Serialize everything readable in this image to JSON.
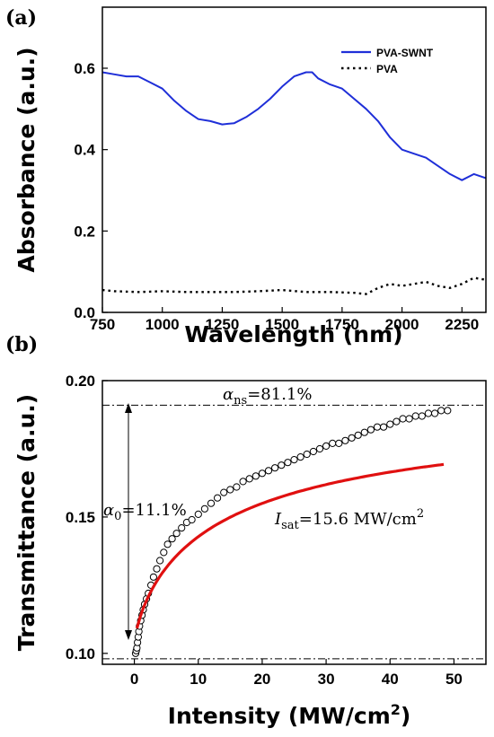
{
  "chart_data": [
    {
      "type": "line",
      "panel_label": "(a)",
      "xlabel": "Wavelength (nm)",
      "ylabel": "Absorbance (a.u.)",
      "xlim": [
        750,
        2350
      ],
      "ylim": [
        0.0,
        0.75
      ],
      "xticks": [
        750,
        1000,
        1250,
        1500,
        1750,
        2000,
        2250
      ],
      "yticks": [
        0.0,
        0.2,
        0.4,
        0.6
      ],
      "legend_position": "top-right",
      "series": [
        {
          "name": "PVA-SWNT",
          "color": "#1f2fd8",
          "style": "solid",
          "x": [
            750,
            800,
            850,
            900,
            950,
            1000,
            1050,
            1100,
            1150,
            1200,
            1250,
            1300,
            1350,
            1400,
            1450,
            1500,
            1550,
            1600,
            1625,
            1650,
            1700,
            1750,
            1800,
            1850,
            1900,
            1950,
            2000,
            2050,
            2100,
            2150,
            2200,
            2250,
            2300,
            2350
          ],
          "y": [
            0.59,
            0.585,
            0.58,
            0.58,
            0.565,
            0.55,
            0.52,
            0.495,
            0.475,
            0.47,
            0.462,
            0.465,
            0.48,
            0.5,
            0.525,
            0.555,
            0.58,
            0.59,
            0.59,
            0.575,
            0.56,
            0.55,
            0.525,
            0.5,
            0.47,
            0.43,
            0.4,
            0.39,
            0.38,
            0.36,
            0.34,
            0.325,
            0.34,
            0.33
          ]
        },
        {
          "name": "PVA",
          "color": "#000000",
          "style": "dotted",
          "x": [
            750,
            800,
            900,
            1000,
            1100,
            1200,
            1300,
            1400,
            1500,
            1600,
            1700,
            1800,
            1850,
            1900,
            1950,
            2000,
            2050,
            2100,
            2150,
            2200,
            2250,
            2300,
            2350
          ],
          "y": [
            0.055,
            0.052,
            0.05,
            0.052,
            0.05,
            0.05,
            0.05,
            0.052,
            0.055,
            0.05,
            0.05,
            0.048,
            0.045,
            0.06,
            0.07,
            0.065,
            0.07,
            0.075,
            0.065,
            0.06,
            0.07,
            0.085,
            0.08
          ]
        }
      ]
    },
    {
      "type": "scatter",
      "panel_label": "(b)",
      "xlabel": "Intensity (MW/cm",
      "xlabel_superscript": "2",
      "xlabel_suffix": ")",
      "ylabel": "Transmittance (a.u.)",
      "xlim": [
        -5,
        55
      ],
      "ylim": [
        0.096,
        0.2
      ],
      "xticks": [
        0,
        10,
        20,
        30,
        40,
        50
      ],
      "yticks": [
        0.1,
        0.15,
        0.2
      ],
      "ytick_labels": [
        "0.10",
        "0.15",
        "0.20"
      ],
      "reference_lines": [
        0.191,
        0.098
      ],
      "annotations": {
        "alpha_ns": {
          "symbol": "α",
          "subscript": "ns",
          "text": "=81.1%"
        },
        "alpha_0": {
          "symbol": "α",
          "subscript": "0",
          "text": "=11.1%"
        },
        "isat": {
          "symbol": "I",
          "subscript": "sat",
          "text": "=15.6 MW/cm",
          "superscript": "2"
        }
      },
      "fit": {
        "color": "#e01010",
        "alpha_0": 0.111,
        "alpha_ns": 0.811,
        "I_sat": 15.6,
        "x_range": [
          0.4,
          48.5
        ]
      },
      "points": {
        "x": [
          0.2,
          0.3,
          0.4,
          0.5,
          0.6,
          0.7,
          0.8,
          1.0,
          1.2,
          1.4,
          1.6,
          1.9,
          2.2,
          2.6,
          3.0,
          3.5,
          4.0,
          4.6,
          5.2,
          5.9,
          6.6,
          7.4,
          8.2,
          9.0,
          10.0,
          11.0,
          12.0,
          13.0,
          14.0,
          15.0,
          16.0,
          17.0,
          18.0,
          19.0,
          20.0,
          21.0,
          22.0,
          23.0,
          24.0,
          25.0,
          26.0,
          27.0,
          28.0,
          29.0,
          30.0,
          31.0,
          32.0,
          33.0,
          34.0,
          35.0,
          36.0,
          37.0,
          38.0,
          39.0,
          40.0,
          41.0,
          42.0,
          43.0,
          44.0,
          45.0,
          46.0,
          47.0,
          48.0,
          49.0
        ],
        "y": [
          0.1,
          0.101,
          0.102,
          0.104,
          0.106,
          0.108,
          0.11,
          0.112,
          0.114,
          0.116,
          0.118,
          0.12,
          0.122,
          0.125,
          0.128,
          0.131,
          0.134,
          0.137,
          0.14,
          0.142,
          0.144,
          0.146,
          0.148,
          0.149,
          0.151,
          0.153,
          0.155,
          0.157,
          0.159,
          0.16,
          0.161,
          0.163,
          0.164,
          0.165,
          0.166,
          0.167,
          0.168,
          0.169,
          0.17,
          0.171,
          0.172,
          0.173,
          0.174,
          0.175,
          0.176,
          0.177,
          0.177,
          0.178,
          0.179,
          0.18,
          0.181,
          0.182,
          0.183,
          0.183,
          0.184,
          0.185,
          0.186,
          0.186,
          0.187,
          0.187,
          0.188,
          0.188,
          0.189,
          0.189
        ]
      }
    }
  ]
}
